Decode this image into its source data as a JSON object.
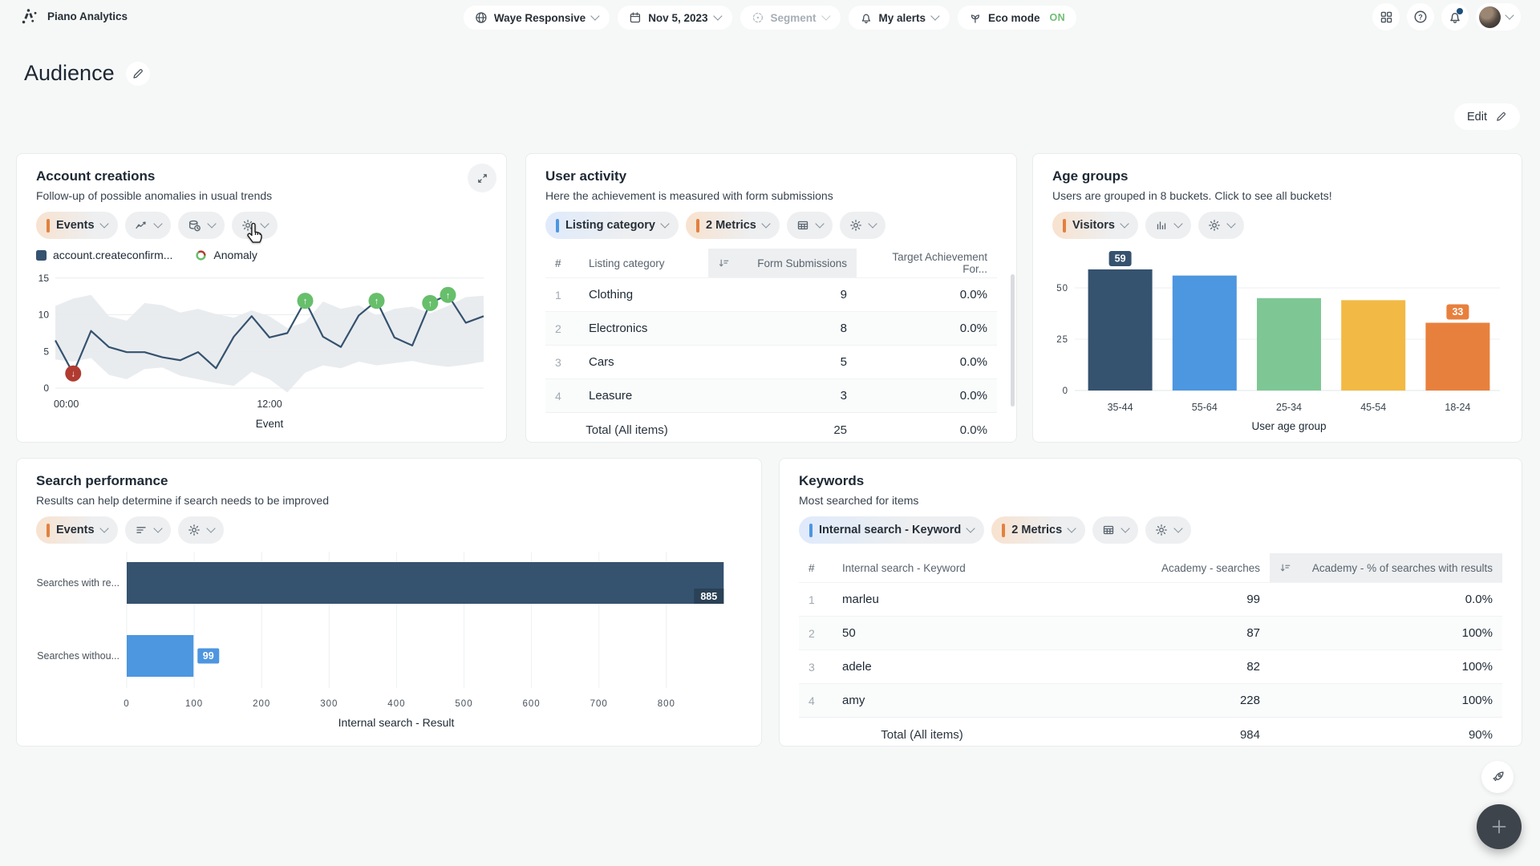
{
  "topbar": {
    "brand": "Piano Analytics",
    "site_picker": "Waye Responsive",
    "date_picker": "Nov 5, 2023",
    "segment_picker": "Segment",
    "alerts": "My alerts",
    "eco_mode_label": "Eco mode",
    "eco_mode_state": "ON"
  },
  "page": {
    "title": "Audience",
    "edit_button": "Edit"
  },
  "widgets": {
    "account_creations": {
      "title": "Account creations",
      "subtitle": "Follow-up of possible anomalies in usual trends",
      "metric_pill": "Events",
      "legend_series": "account.createconfirm...",
      "legend_anomaly": "Anomaly"
    },
    "user_activity": {
      "title": "User activity",
      "subtitle": "Here the achievement is measured with form submissions",
      "dimension_pill": "Listing category",
      "metrics_pill": "2 Metrics"
    },
    "age_groups": {
      "title": "Age groups",
      "subtitle": "Users are grouped in 8 buckets. Click to see all buckets!",
      "metric_pill": "Visitors"
    },
    "search_performance": {
      "title": "Search performance",
      "subtitle": "Results can help determine if search needs to be improved",
      "metric_pill": "Events"
    },
    "keywords": {
      "title": "Keywords",
      "subtitle": "Most searched for items",
      "dimension_pill": "Internal search - Keyword",
      "metrics_pill": "2 Metrics"
    }
  },
  "tables": {
    "user_activity": {
      "columns": [
        {
          "label": "#"
        },
        {
          "label": "Listing category"
        },
        {
          "label": "Form Submissions",
          "align": "right",
          "sorted": true
        },
        {
          "label": "Target Achievement For...",
          "align": "right"
        }
      ],
      "rows": [
        [
          "1",
          "Clothing",
          "9",
          "0.0%"
        ],
        [
          "2",
          "Electronics",
          "8",
          "0.0%"
        ],
        [
          "3",
          "Cars",
          "5",
          "0.0%"
        ],
        [
          "4",
          "Leasure",
          "3",
          "0.0%"
        ]
      ],
      "total": {
        "label": "Total (All items)",
        "values": [
          "25",
          "0.0%"
        ]
      }
    },
    "keywords": {
      "columns": [
        {
          "label": "#"
        },
        {
          "label": "Internal search - Keyword"
        },
        {
          "label": "Academy - searches",
          "align": "right"
        },
        {
          "label": "Academy - % of searches with results",
          "align": "right",
          "sorted": true
        }
      ],
      "rows": [
        [
          "1",
          "marleu",
          "99",
          "0.0%"
        ],
        [
          "2",
          "50",
          "87",
          "100%"
        ],
        [
          "3",
          "adele",
          "82",
          "100%"
        ],
        [
          "4",
          "amy",
          "228",
          "100%"
        ]
      ],
      "total": {
        "label": "Total (All items)",
        "values": [
          "984",
          "90%"
        ]
      }
    }
  },
  "chart_data": [
    {
      "id": "account-creations",
      "type": "line",
      "title": "Account creations",
      "series_name": "account.createconfirm...",
      "xlabel": "Event",
      "x_tick_labels": [
        {
          "index": 0,
          "label": "00:00"
        },
        {
          "index": 12,
          "label": "12:00"
        }
      ],
      "y_ticks": [
        0,
        5,
        10,
        15
      ],
      "ylim": [
        0,
        15.5
      ],
      "values": [
        6.5,
        2,
        7.8,
        5.6,
        4.9,
        4.9,
        4.2,
        3.8,
        4.9,
        2.7,
        7,
        9.8,
        6.9,
        7.5,
        11.9,
        7,
        5.6,
        9.9,
        11.9,
        6.9,
        5.8,
        11.6,
        12.7,
        8.9,
        9.8
      ],
      "band_upper": [
        11.2,
        12.2,
        12.7,
        9.8,
        9.2,
        11.6,
        11.3,
        10.3,
        10.8,
        10.1,
        9.6,
        10.6,
        9.8,
        8.2,
        9.0,
        11.8,
        10.8,
        11.3,
        9.9,
        10.8,
        11.1,
        10.2,
        11.2,
        12.4,
        12.6
      ],
      "band_lower": [
        3.9,
        3.6,
        4.1,
        1.8,
        1.2,
        2.6,
        2.8,
        1.7,
        1.2,
        0.7,
        0.3,
        2.2,
        1.2,
        -0.6,
        2.1,
        3.1,
        2.7,
        3.6,
        3.1,
        3.4,
        3.7,
        3.2,
        2.9,
        3.2,
        3.6
      ],
      "anomalies": [
        {
          "index": 1,
          "dir": "down",
          "color": "#B13B30"
        },
        {
          "index": 14,
          "dir": "up",
          "color": "#67BF6B"
        },
        {
          "index": 18,
          "dir": "up",
          "color": "#67BF6B"
        },
        {
          "index": 21,
          "dir": "up",
          "color": "#67BF6B"
        },
        {
          "index": 22,
          "dir": "up",
          "color": "#67BF6B"
        }
      ],
      "line_color": "#35526F",
      "band_color": "#E7EAED",
      "legend": [
        "account.createconfirm...",
        "Anomaly"
      ]
    },
    {
      "id": "age-groups",
      "type": "bar",
      "title": "Age groups",
      "categories": [
        "35-44",
        "55-64",
        "25-34",
        "45-54",
        "18-24"
      ],
      "values": [
        59,
        56,
        45,
        44,
        33
      ],
      "bar_colors": [
        "#35526F",
        "#4D96E0",
        "#7EC795",
        "#F2B944",
        "#E8803D"
      ],
      "value_labels": [
        {
          "index": 0,
          "value": 59,
          "color": "#35526F"
        },
        {
          "index": 4,
          "value": 33,
          "color": "#E8803D"
        }
      ],
      "y_ticks": [
        0,
        25,
        50
      ],
      "ylim": [
        0,
        62
      ],
      "xlabel": "User age group"
    },
    {
      "id": "search-performance",
      "type": "hbar",
      "title": "Search performance",
      "categories": [
        "Searches with re...",
        "Searches withou..."
      ],
      "values": [
        885,
        99
      ],
      "bar_colors": [
        "#35526F",
        "#4D96E0"
      ],
      "x_ticks": [
        0,
        100,
        200,
        300,
        400,
        500,
        600,
        700,
        800
      ],
      "xlim": [
        0,
        900
      ],
      "xlabel": "Internal search - Result"
    }
  ],
  "colors": {
    "navy": "#35526F",
    "blue": "#4D96E0",
    "green": "#7EC795",
    "amber": "#F2B944",
    "orange": "#E8803D",
    "anomaly_up": "#67BF6B",
    "anomaly_down": "#B13B30",
    "eco_on": "#6FBE73",
    "accent_metric": "#E2813F",
    "accent_dimension": "#4D96E0"
  }
}
